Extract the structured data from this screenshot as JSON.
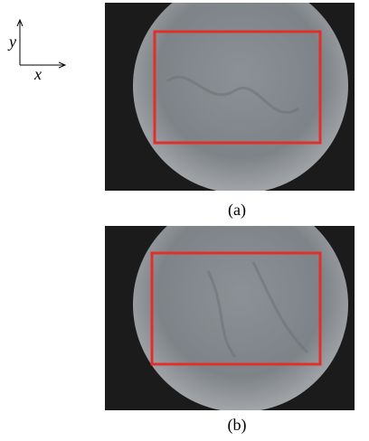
{
  "axes": {
    "y": "y",
    "x": "x"
  },
  "panels": [
    {
      "caption": "(a)"
    },
    {
      "caption": "(b)"
    }
  ]
}
